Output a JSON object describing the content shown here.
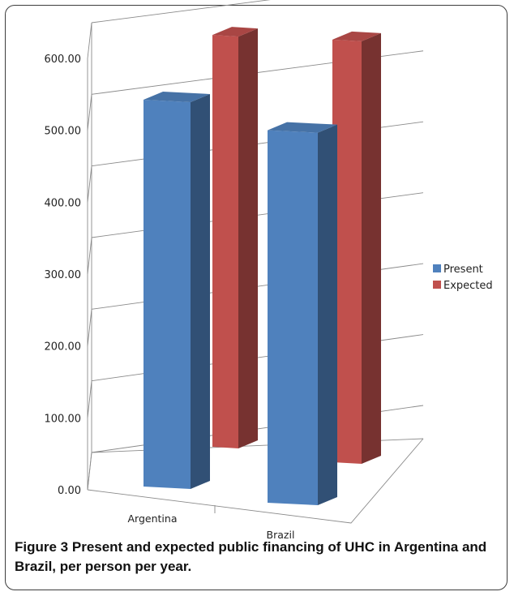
{
  "chart_data": {
    "type": "bar",
    "categories": [
      "Argentina",
      "Brazil"
    ],
    "series": [
      {
        "name": "Present",
        "values": [
          540,
          520
        ],
        "color": "#4f81bd"
      },
      {
        "name": "Expected",
        "values": [
          575,
          590
        ],
        "color": "#c0504d"
      }
    ],
    "yticks": [
      "0.00",
      "100.00",
      "200.00",
      "300.00",
      "400.00",
      "500.00",
      "600.00"
    ],
    "ylim": [
      0,
      600
    ],
    "grid": true,
    "legend": "right",
    "style": "3d-clustered"
  },
  "caption": {
    "label": "Figure 3",
    "text": "Present and expected public financing of UHC in Argentina and Brazil, per person per year."
  }
}
